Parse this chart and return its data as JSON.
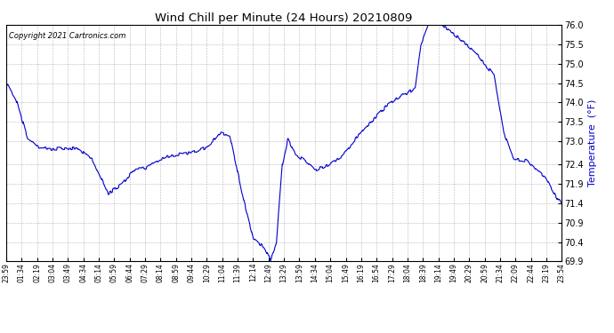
{
  "title": "Wind Chill per Minute (24 Hours) 20210809",
  "ylabel": "Temperature  (°F)",
  "copyright": "Copyright 2021 Cartronics.com",
  "line_color": "#0000CC",
  "ylabel_color": "#0000CC",
  "background_color": "#ffffff",
  "grid_color": "#999999",
  "ylim": [
    69.9,
    76.0
  ],
  "yticks": [
    69.9,
    70.4,
    70.9,
    71.4,
    71.9,
    72.4,
    73.0,
    73.5,
    74.0,
    74.5,
    75.0,
    75.5,
    76.0
  ],
  "xtick_labels": [
    "23:59",
    "01:34",
    "02:19",
    "03:04",
    "03:49",
    "04:34",
    "05:14",
    "05:59",
    "06:44",
    "07:29",
    "08:14",
    "08:59",
    "09:44",
    "10:29",
    "11:04",
    "11:39",
    "12:14",
    "12:49",
    "13:29",
    "13:59",
    "14:34",
    "15:04",
    "15:49",
    "16:19",
    "16:54",
    "17:29",
    "18:04",
    "18:39",
    "19:14",
    "19:49",
    "20:29",
    "20:59",
    "21:34",
    "22:09",
    "22:44",
    "23:19",
    "23:54"
  ],
  "keypoints_t": [
    0,
    25,
    55,
    85,
    120,
    155,
    185,
    225,
    265,
    300,
    335,
    360,
    400,
    440,
    480,
    520,
    555,
    580,
    615,
    640,
    670,
    685,
    700,
    715,
    730,
    750,
    775,
    800,
    835,
    870,
    905,
    945,
    985,
    1020,
    1060,
    1075,
    1095,
    1110,
    1125,
    1145,
    1175,
    1205,
    1235,
    1265,
    1290,
    1315,
    1350,
    1395,
    1430,
    1440
  ],
  "keypoints_v": [
    74.5,
    74.1,
    73.1,
    72.85,
    72.8,
    72.82,
    72.82,
    72.5,
    71.65,
    71.9,
    72.3,
    72.3,
    72.55,
    72.65,
    72.7,
    72.85,
    73.2,
    73.15,
    71.5,
    70.5,
    70.25,
    69.95,
    70.35,
    72.35,
    73.05,
    72.65,
    72.5,
    72.25,
    72.4,
    72.6,
    73.05,
    73.5,
    73.9,
    74.15,
    74.35,
    75.5,
    76.0,
    76.1,
    76.05,
    75.9,
    75.65,
    75.4,
    75.05,
    74.7,
    73.2,
    72.55,
    72.5,
    72.1,
    71.5,
    71.4
  ]
}
